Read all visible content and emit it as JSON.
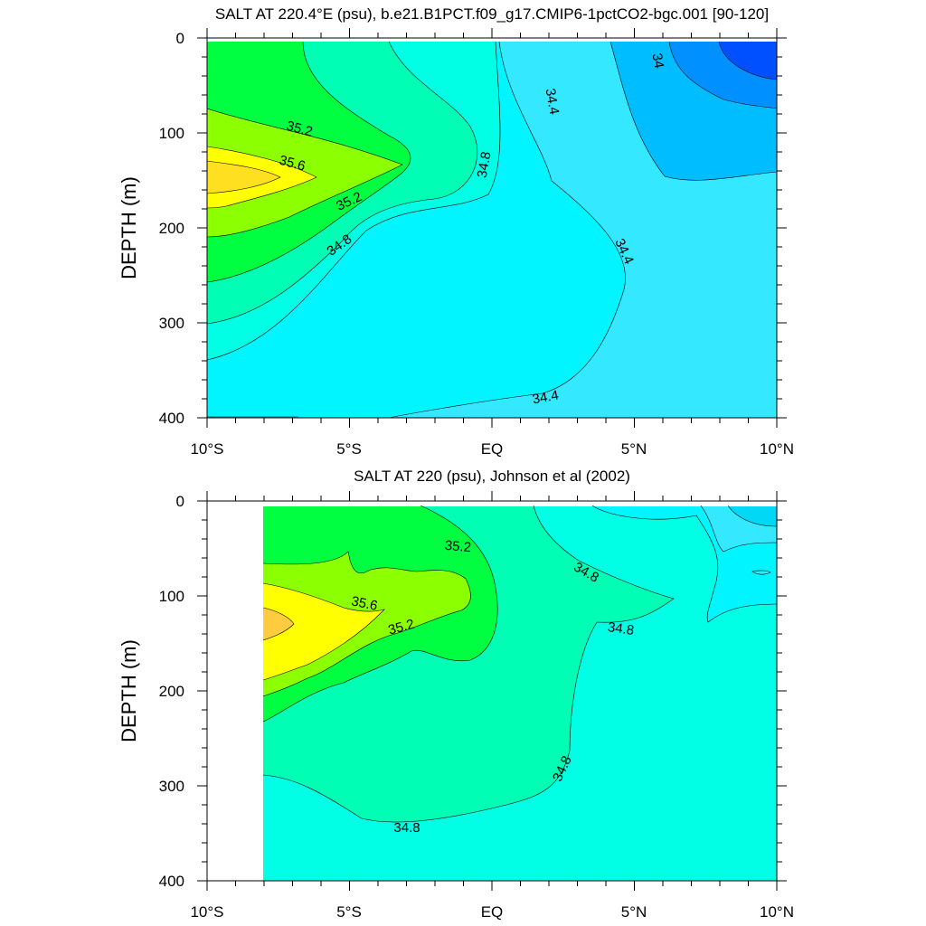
{
  "chart_data": [
    {
      "type": "contour",
      "title": "SALT AT 220.4°E (psu), b.e21.B1PCT.f09_g17.CMIP6-1pctCO2-bgc.001 [90-120]",
      "ylabel": "DEPTH (m)",
      "xlabel": "",
      "xlim": [
        -10,
        10
      ],
      "ylim": [
        400,
        0
      ],
      "y_reversed": true,
      "xtick_labels": [
        "10°S",
        "5°S",
        "EQ",
        "5°N",
        "10°N"
      ],
      "ytick_labels": [
        "0",
        "100",
        "200",
        "300",
        "400"
      ],
      "contour_labels": [
        "35.2",
        "35.6",
        "35.2",
        "34.8",
        "34.8",
        "34.4",
        "34.4",
        "34.4",
        "34"
      ],
      "colors": {
        "c33_8": "#0050ff",
        "c34_0": "#0090ff",
        "c34_2": "#00bdff",
        "c34_4": "#34e8ff",
        "c34_6": "#00f5ff",
        "c34_8": "#00ffe4",
        "c35_0": "#00ffb4",
        "c35_2": "#00ff40",
        "c35_4": "#8cff00",
        "c35_6": "#ffff00",
        "c35_8": "#ffe020"
      }
    },
    {
      "type": "contour",
      "title": "SALT AT 220 (psu), Johnson et al (2002)",
      "ylabel": "DEPTH (m)",
      "xlabel": "",
      "xlim": [
        -10,
        10
      ],
      "ylim": [
        400,
        0
      ],
      "y_reversed": true,
      "data_x_start": -8,
      "xtick_labels": [
        "10°S",
        "5°S",
        "EQ",
        "5°N",
        "10°N"
      ],
      "ytick_labels": [
        "0",
        "100",
        "200",
        "300",
        "400"
      ],
      "contour_labels": [
        "35.2",
        "35.6",
        "35.2",
        "34.8",
        "34.8",
        "34.8",
        "34.8"
      ],
      "colors": {
        "c34_4": "#34e8ff",
        "c34_6": "#00f5ff",
        "c34_8": "#00ffe4",
        "c35_0": "#00ffb4",
        "c35_2": "#00ff40",
        "c35_4": "#8cff00",
        "c35_6": "#ffff00",
        "c35_8": "#ffcc40"
      }
    }
  ]
}
